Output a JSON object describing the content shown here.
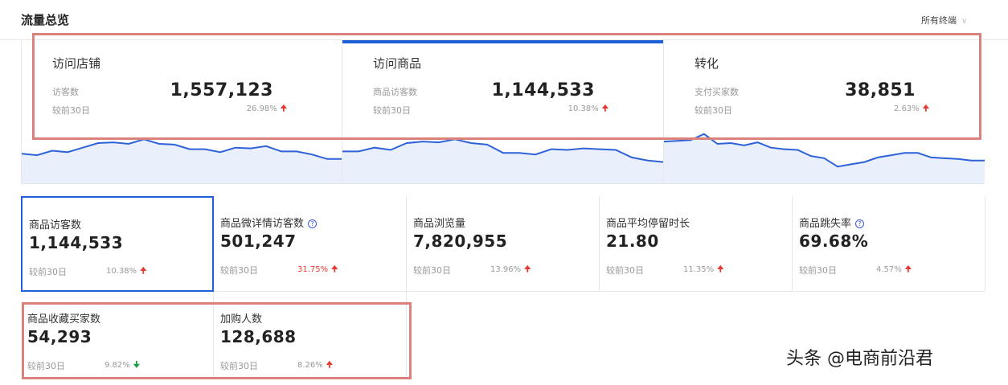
{
  "header": {
    "title": "流量总览",
    "terminal_select": "所有终端"
  },
  "colors": {
    "accent": "#1f5fd6",
    "up": "#e8382f",
    "down": "#1a9e43",
    "highlight": "#d9817a",
    "sparkline_fill": "#eaf0fb"
  },
  "top_cards": [
    {
      "name": "访问店铺",
      "metric": "访客数",
      "value": "1,557,123",
      "compare": "较前30日",
      "pct": "26.98%",
      "trend": "up",
      "active": false,
      "spark": [
        39,
        37,
        43,
        41,
        47,
        53,
        54,
        52,
        58,
        52,
        51,
        45,
        45,
        41,
        47,
        46,
        49,
        42,
        42,
        38,
        32,
        32
      ]
    },
    {
      "name": "访问商品",
      "metric": "商品访客数",
      "value": "1,144,533",
      "compare": "较前30日",
      "pct": "10.38%",
      "trend": "up",
      "active": true,
      "spark": [
        42,
        42,
        47,
        44,
        53,
        55,
        54,
        58,
        53,
        51,
        40,
        40,
        38,
        45,
        44,
        46,
        45,
        44,
        34,
        30,
        28
      ]
    },
    {
      "name": "转化",
      "metric": "支付买家数",
      "value": "38,851",
      "compare": "较前30日",
      "pct": "2.63%",
      "trend": "up",
      "active": false,
      "spark": [
        55,
        56,
        57,
        65,
        52,
        53,
        50,
        54,
        47,
        45,
        44,
        36,
        33,
        22,
        25,
        28,
        34,
        37,
        40,
        40,
        34,
        33,
        32,
        30,
        30
      ]
    }
  ],
  "metrics": [
    {
      "name": "商品访客数",
      "value": "1,144,533",
      "compare": "较前30日",
      "pct": "10.38%",
      "trend": "up",
      "help": false,
      "selected": true,
      "pct_red": false
    },
    {
      "name": "商品微详情访客数",
      "value": "501,247",
      "compare": "较前30日",
      "pct": "31.75%",
      "trend": "up",
      "help": true,
      "selected": false,
      "pct_red": true
    },
    {
      "name": "商品浏览量",
      "value": "7,820,955",
      "compare": "较前30日",
      "pct": "13.96%",
      "trend": "up",
      "help": false,
      "selected": false,
      "pct_red": false
    },
    {
      "name": "商品平均停留时长",
      "value": "21.80",
      "compare": "较前30日",
      "pct": "11.35%",
      "trend": "up",
      "help": false,
      "selected": false,
      "pct_red": false
    },
    {
      "name": "商品跳失率",
      "value": "69.68%",
      "compare": "较前30日",
      "pct": "4.57%",
      "trend": "up",
      "help": true,
      "selected": false,
      "pct_red": false
    },
    {
      "name": "商品收藏买家数",
      "value": "54,293",
      "compare": "较前30日",
      "pct": "9.82%",
      "trend": "down",
      "help": false,
      "selected": false,
      "pct_red": false
    },
    {
      "name": "加购人数",
      "value": "128,688",
      "compare": "较前30日",
      "pct": "8.26%",
      "trend": "up",
      "help": false,
      "selected": false,
      "pct_red": false
    }
  ],
  "icons": {
    "up": "arrow-up-icon",
    "down": "arrow-down-icon",
    "help": "question-circle-icon",
    "chevron": "chevron-down-icon"
  },
  "watermark": "头条 @电商前沿君"
}
